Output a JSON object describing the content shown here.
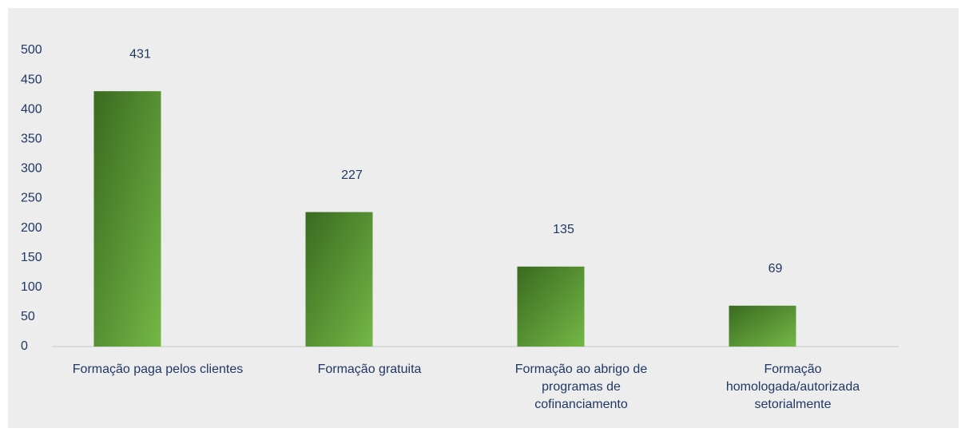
{
  "chart_data": {
    "type": "bar",
    "categories": [
      "Formação paga pelos clientes",
      "Formação gratuita",
      "Formação ao abrigo de\nprogramas de\ncofinanciamento",
      "Formação\nhomologada/autorizada\nsetorialmente"
    ],
    "values": [
      431,
      227,
      135,
      69
    ],
    "color": "#5a9a34",
    "ylim": [
      0,
      500
    ],
    "yticks": [
      0,
      50,
      100,
      150,
      200,
      250,
      300,
      350,
      400,
      450,
      500
    ],
    "grid": false
  }
}
